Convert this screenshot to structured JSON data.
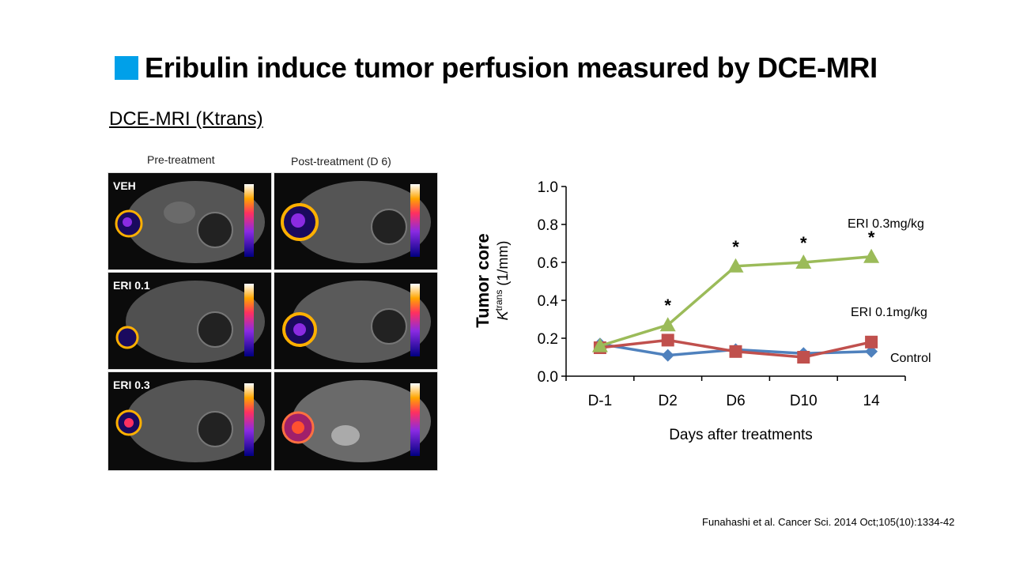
{
  "slide": {
    "title": "Eribulin induce tumor perfusion measured by DCE-MRI",
    "subtitle": "DCE-MRI (Ktrans)",
    "citation": "Funahashi et al. Cancer Sci. 2014 Oct;105(10):1334-42"
  },
  "mri_figure": {
    "col_pre": "Pre-treatment",
    "col_post": "Post-treatment (D 6)",
    "rows": [
      {
        "label": "VEH"
      },
      {
        "label": "ERI 0.1"
      },
      {
        "label": "ERI 0.3"
      }
    ]
  },
  "chart_data": {
    "type": "line",
    "title": "",
    "ylabel_main": "Tumor core",
    "ylabel_sub_k": "K",
    "ylabel_sub_sup": "trans",
    "ylabel_sub_unit": " (1/mm)",
    "xlabel": "Days after treatments",
    "categories": [
      "D-1",
      "D2",
      "D6",
      "D10",
      "14"
    ],
    "ylim": [
      0,
      1.0
    ],
    "yticks": [
      "0.0",
      "0.2",
      "0.4",
      "0.6",
      "0.8",
      "1.0"
    ],
    "series": [
      {
        "name": "Control",
        "marker": "diamond",
        "color": "#4f81bd",
        "values": [
          0.17,
          0.11,
          0.14,
          0.12,
          0.13
        ]
      },
      {
        "name": "ERI 0.1mg/kg",
        "marker": "square",
        "color": "#c0504d",
        "values": [
          0.15,
          0.19,
          0.13,
          0.1,
          0.18
        ]
      },
      {
        "name": "ERI 0.3mg/kg",
        "marker": "triangle",
        "color": "#9bbb59",
        "values": [
          0.16,
          0.27,
          0.58,
          0.6,
          0.63
        ]
      }
    ],
    "significance": [
      {
        "category": "D2",
        "label": "*"
      },
      {
        "category": "D6",
        "label": "*"
      },
      {
        "category": "D10",
        "label": "*"
      },
      {
        "category": "14",
        "label": "*"
      }
    ]
  }
}
